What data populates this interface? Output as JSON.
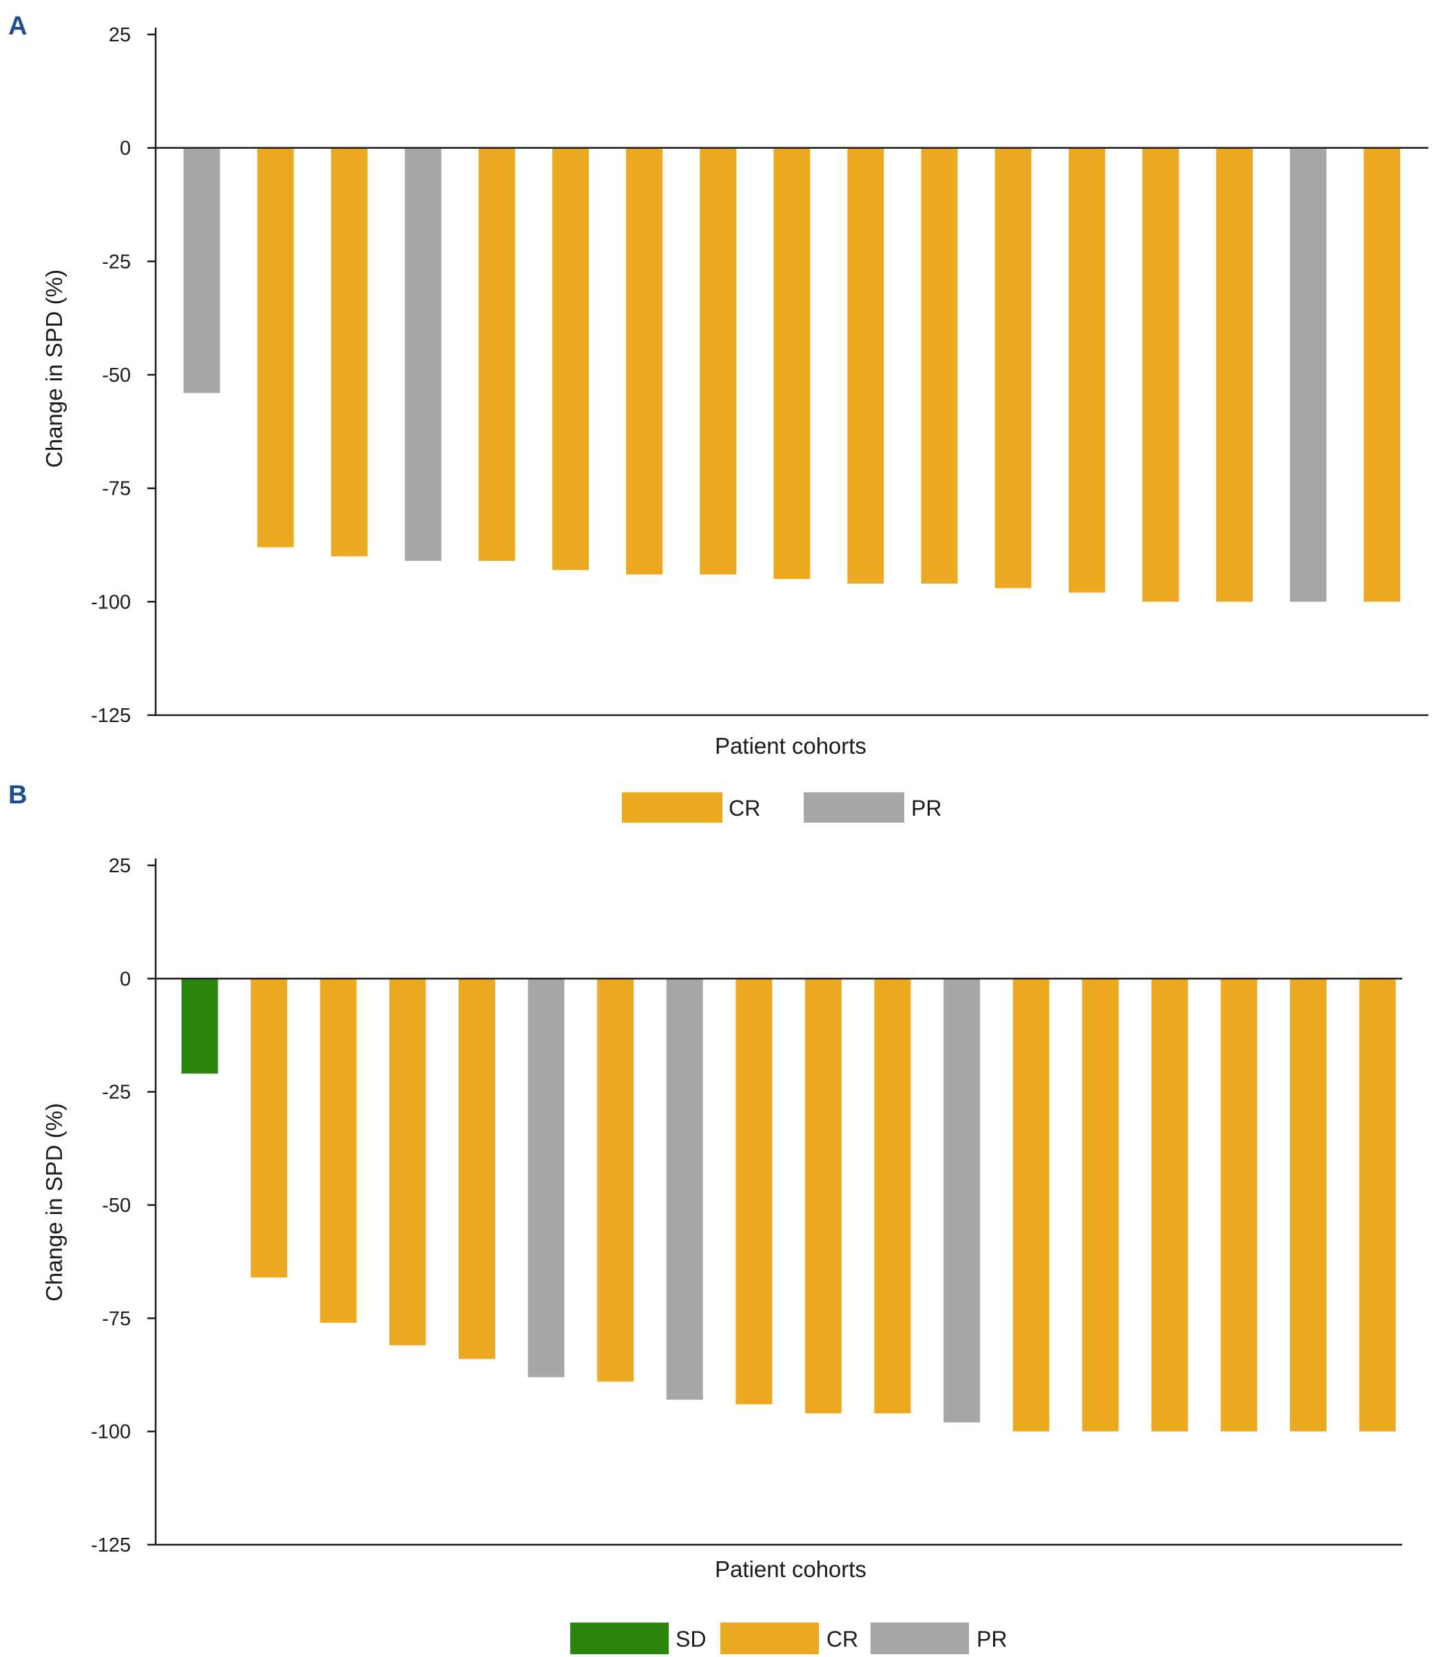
{
  "colors": {
    "CR": "#ECA922",
    "PR": "#A8A7A7",
    "SD": "#2B850F",
    "axis": "#1a1a1a",
    "panel_label": "#1f4e8c"
  },
  "chart_data": [
    {
      "panel": "A",
      "type": "bar",
      "xlabel": "Patient cohorts",
      "ylabel": "Change in SPD (%)",
      "ylim": [
        -125,
        25
      ],
      "yticks": [
        25,
        0,
        -25,
        -50,
        -75,
        -100,
        -125
      ],
      "legend": [
        "CR",
        "PR"
      ],
      "legend_labels": {
        "CR": "CR",
        "PR": "PR"
      },
      "bars": [
        {
          "response": "PR",
          "value": -54
        },
        {
          "response": "CR",
          "value": -88
        },
        {
          "response": "CR",
          "value": -90
        },
        {
          "response": "PR",
          "value": -91
        },
        {
          "response": "CR",
          "value": -91
        },
        {
          "response": "CR",
          "value": -93
        },
        {
          "response": "CR",
          "value": -94
        },
        {
          "response": "CR",
          "value": -94
        },
        {
          "response": "CR",
          "value": -95
        },
        {
          "response": "CR",
          "value": -96
        },
        {
          "response": "CR",
          "value": -96
        },
        {
          "response": "CR",
          "value": -97
        },
        {
          "response": "CR",
          "value": -98
        },
        {
          "response": "CR",
          "value": -100
        },
        {
          "response": "CR",
          "value": -100
        },
        {
          "response": "PR",
          "value": -100
        },
        {
          "response": "CR",
          "value": -100
        }
      ]
    },
    {
      "panel": "B",
      "type": "bar",
      "xlabel": "Patient cohorts",
      "ylabel": "Change in SPD (%)",
      "ylim": [
        -125,
        25
      ],
      "yticks": [
        25,
        0,
        -25,
        -50,
        -75,
        -100,
        -125
      ],
      "legend": [
        "SD",
        "CR",
        "PR"
      ],
      "legend_labels": {
        "SD": "SD",
        "CR": "CR",
        "PR": "PR"
      },
      "bars": [
        {
          "response": "SD",
          "value": -21
        },
        {
          "response": "CR",
          "value": -66
        },
        {
          "response": "CR",
          "value": -76
        },
        {
          "response": "CR",
          "value": -81
        },
        {
          "response": "CR",
          "value": -84
        },
        {
          "response": "PR",
          "value": -88
        },
        {
          "response": "CR",
          "value": -89
        },
        {
          "response": "PR",
          "value": -93
        },
        {
          "response": "CR",
          "value": -94
        },
        {
          "response": "CR",
          "value": -96
        },
        {
          "response": "CR",
          "value": -96
        },
        {
          "response": "PR",
          "value": -98
        },
        {
          "response": "CR",
          "value": -100
        },
        {
          "response": "CR",
          "value": -100
        },
        {
          "response": "CR",
          "value": -100
        },
        {
          "response": "CR",
          "value": -100
        },
        {
          "response": "CR",
          "value": -100
        },
        {
          "response": "CR",
          "value": -100
        }
      ]
    }
  ]
}
